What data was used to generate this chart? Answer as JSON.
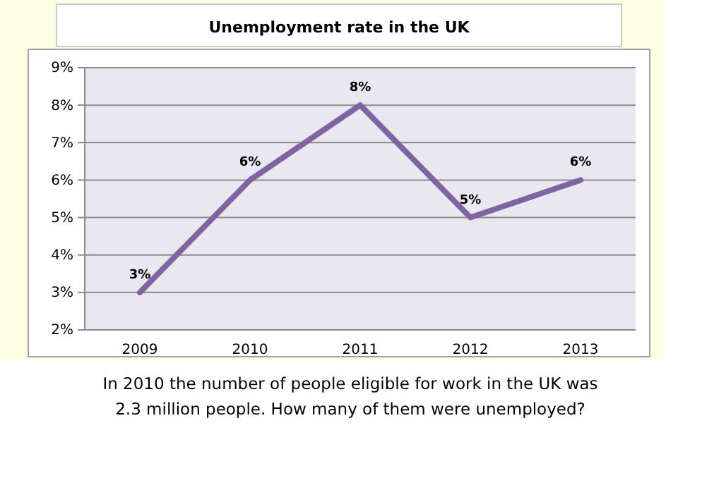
{
  "chart_data": {
    "type": "line",
    "title": "Unemployment rate in the UK",
    "categories": [
      "2009",
      "2010",
      "2011",
      "2012",
      "2013"
    ],
    "series": [
      {
        "color": "#8064a2",
        "values": [
          3,
          6,
          8,
          5,
          6
        ],
        "value_labels": [
          "3%",
          "6%",
          "8%",
          "5%",
          "6%"
        ]
      }
    ],
    "ylim": [
      2,
      9
    ],
    "yticks": [
      {
        "value": 2,
        "label": "2%"
      },
      {
        "value": 3,
        "label": "3%"
      },
      {
        "value": 4,
        "label": "4%"
      },
      {
        "value": 5,
        "label": "5%"
      },
      {
        "value": 6,
        "label": "6%"
      },
      {
        "value": 7,
        "label": "7%"
      },
      {
        "value": 8,
        "label": "8%"
      },
      {
        "value": 9,
        "label": "9%"
      }
    ],
    "grid": "y",
    "marker": "none",
    "line_style": "solid",
    "annotations": [
      "In 2010 the number of people eligible for work in the UK was 2.3 million people. How many of them were unemployed?"
    ]
  }
}
